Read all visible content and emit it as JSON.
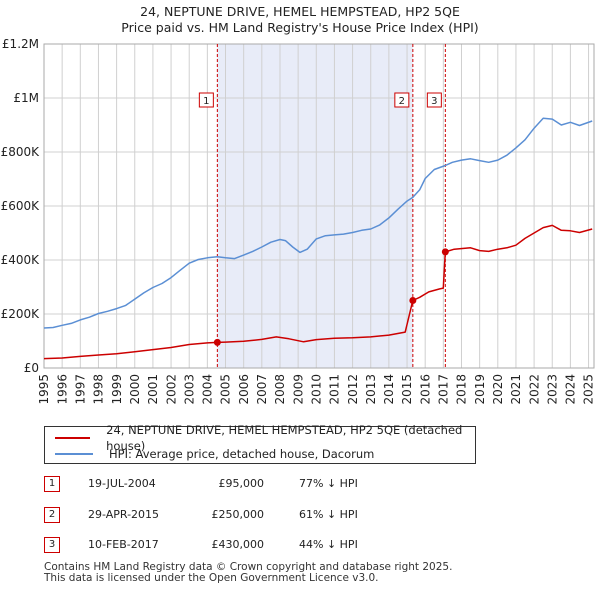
{
  "header": {
    "title_line1": "24, NEPTUNE DRIVE, HEMEL HEMPSTEAD, HP2 5QE",
    "title_line2": "Price paid vs. HM Land Registry's House Price Index (HPI)"
  },
  "chart_data": {
    "type": "line",
    "title": "24, NEPTUNE DRIVE, HEMEL HEMPSTEAD, HP2 5QE",
    "subtitle": "Price paid vs. HM Land Registry's House Price Index (HPI)",
    "xlabel": "",
    "ylabel": "",
    "xlim": [
      1995,
      2025.3
    ],
    "ylim": [
      0,
      1200000
    ],
    "x_ticks": [
      1995,
      1996,
      1997,
      1998,
      1999,
      2000,
      2001,
      2002,
      2003,
      2004,
      2005,
      2006,
      2007,
      2008,
      2009,
      2010,
      2011,
      2012,
      2013,
      2014,
      2015,
      2016,
      2017,
      2018,
      2019,
      2020,
      2021,
      2022,
      2023,
      2024,
      2025
    ],
    "y_ticks": [
      {
        "value": 0,
        "label": "£0"
      },
      {
        "value": 200000,
        "label": "£200K"
      },
      {
        "value": 400000,
        "label": "£400K"
      },
      {
        "value": 600000,
        "label": "£600K"
      },
      {
        "value": 800000,
        "label": "£800K"
      },
      {
        "value": 1000000,
        "label": "£1M"
      },
      {
        "value": 1200000,
        "label": "£1.2M"
      }
    ],
    "grid": true,
    "legend_position": "below",
    "colors": {
      "property": "#cc0000",
      "hpi": "#5b8fd4",
      "shade": "#e8ecf8",
      "grid": "#d0d0d0"
    },
    "series": [
      {
        "name": "24, NEPTUNE DRIVE, HEMEL HEMPSTEAD, HP2 5QE (detached house)",
        "color": "#cc0000",
        "points": [
          [
            1995,
            35000
          ],
          [
            1996,
            37000
          ],
          [
            1997,
            43000
          ],
          [
            1998,
            48000
          ],
          [
            1999,
            53000
          ],
          [
            2000,
            60000
          ],
          [
            2001,
            68000
          ],
          [
            2002,
            76000
          ],
          [
            2003,
            87000
          ],
          [
            2004,
            93000
          ],
          [
            2004.55,
            95000
          ],
          [
            2005,
            96000
          ],
          [
            2006,
            99000
          ],
          [
            2007,
            106000
          ],
          [
            2007.8,
            115000
          ],
          [
            2008.5,
            108000
          ],
          [
            2009.3,
            97000
          ],
          [
            2010,
            105000
          ],
          [
            2011,
            110000
          ],
          [
            2012,
            112000
          ],
          [
            2013,
            115000
          ],
          [
            2014,
            122000
          ],
          [
            2014.9,
            133000
          ],
          [
            2015.32,
            250000
          ],
          [
            2015.7,
            262000
          ],
          [
            2016.2,
            282000
          ],
          [
            2016.8,
            293000
          ],
          [
            2017.0,
            296000
          ],
          [
            2017.11,
            430000
          ],
          [
            2017.6,
            440000
          ],
          [
            2018.5,
            445000
          ],
          [
            2019,
            435000
          ],
          [
            2019.5,
            432000
          ],
          [
            2020,
            440000
          ],
          [
            2020.5,
            445000
          ],
          [
            2021,
            455000
          ],
          [
            2021.5,
            480000
          ],
          [
            2022,
            500000
          ],
          [
            2022.5,
            520000
          ],
          [
            2023,
            528000
          ],
          [
            2023.5,
            510000
          ],
          [
            2024,
            508000
          ],
          [
            2024.5,
            502000
          ],
          [
            2025.2,
            515000
          ]
        ]
      },
      {
        "name": "HPI: Average price, detached house, Dacorum",
        "color": "#5b8fd4",
        "points": [
          [
            1995,
            148000
          ],
          [
            1995.5,
            150000
          ],
          [
            1996,
            158000
          ],
          [
            1996.5,
            165000
          ],
          [
            1997,
            178000
          ],
          [
            1997.5,
            188000
          ],
          [
            1998,
            202000
          ],
          [
            1998.5,
            210000
          ],
          [
            1999,
            220000
          ],
          [
            1999.5,
            232000
          ],
          [
            2000,
            255000
          ],
          [
            2000.5,
            278000
          ],
          [
            2001,
            298000
          ],
          [
            2001.5,
            313000
          ],
          [
            2002,
            335000
          ],
          [
            2002.5,
            362000
          ],
          [
            2003,
            388000
          ],
          [
            2003.5,
            402000
          ],
          [
            2004,
            408000
          ],
          [
            2004.55,
            412000
          ],
          [
            2005,
            408000
          ],
          [
            2005.5,
            405000
          ],
          [
            2006,
            418000
          ],
          [
            2006.5,
            432000
          ],
          [
            2007,
            448000
          ],
          [
            2007.5,
            466000
          ],
          [
            2008,
            476000
          ],
          [
            2008.3,
            472000
          ],
          [
            2008.7,
            448000
          ],
          [
            2009.1,
            428000
          ],
          [
            2009.5,
            440000
          ],
          [
            2010,
            478000
          ],
          [
            2010.5,
            490000
          ],
          [
            2011,
            493000
          ],
          [
            2011.5,
            496000
          ],
          [
            2012,
            502000
          ],
          [
            2012.5,
            510000
          ],
          [
            2013,
            515000
          ],
          [
            2013.5,
            530000
          ],
          [
            2014,
            556000
          ],
          [
            2014.5,
            588000
          ],
          [
            2015,
            618000
          ],
          [
            2015.32,
            632000
          ],
          [
            2015.7,
            660000
          ],
          [
            2016,
            702000
          ],
          [
            2016.5,
            735000
          ],
          [
            2017.11,
            750000
          ],
          [
            2017.5,
            762000
          ],
          [
            2018,
            770000
          ],
          [
            2018.5,
            775000
          ],
          [
            2019,
            768000
          ],
          [
            2019.5,
            762000
          ],
          [
            2020,
            770000
          ],
          [
            2020.5,
            788000
          ],
          [
            2021,
            815000
          ],
          [
            2021.5,
            845000
          ],
          [
            2022,
            888000
          ],
          [
            2022.5,
            925000
          ],
          [
            2023,
            922000
          ],
          [
            2023.5,
            900000
          ],
          [
            2024,
            910000
          ],
          [
            2024.5,
            898000
          ],
          [
            2025.2,
            915000
          ]
        ]
      }
    ],
    "annotations": [
      {
        "label": "1",
        "x": 2004.55,
        "y": 95000
      },
      {
        "label": "2",
        "x": 2015.32,
        "y": 250000
      },
      {
        "label": "3",
        "x": 2017.11,
        "y": 430000
      }
    ],
    "shaded_regions": [
      [
        2004.55,
        2015.32
      ]
    ]
  },
  "legend": {
    "property_label": "24, NEPTUNE DRIVE, HEMEL HEMPSTEAD, HP2 5QE (detached house)",
    "hpi_label": "HPI: Average price, detached house, Dacorum"
  },
  "sales": [
    {
      "num": "1",
      "date": "19-JUL-2004",
      "price": "£95,000",
      "hpi": "77% ↓ HPI"
    },
    {
      "num": "2",
      "date": "29-APR-2015",
      "price": "£250,000",
      "hpi": "61% ↓ HPI"
    },
    {
      "num": "3",
      "date": "10-FEB-2017",
      "price": "£430,000",
      "hpi": "44% ↓ HPI"
    }
  ],
  "footer": {
    "line1": "Contains HM Land Registry data © Crown copyright and database right 2025.",
    "line2": "This data is licensed under the Open Government Licence v3.0."
  }
}
